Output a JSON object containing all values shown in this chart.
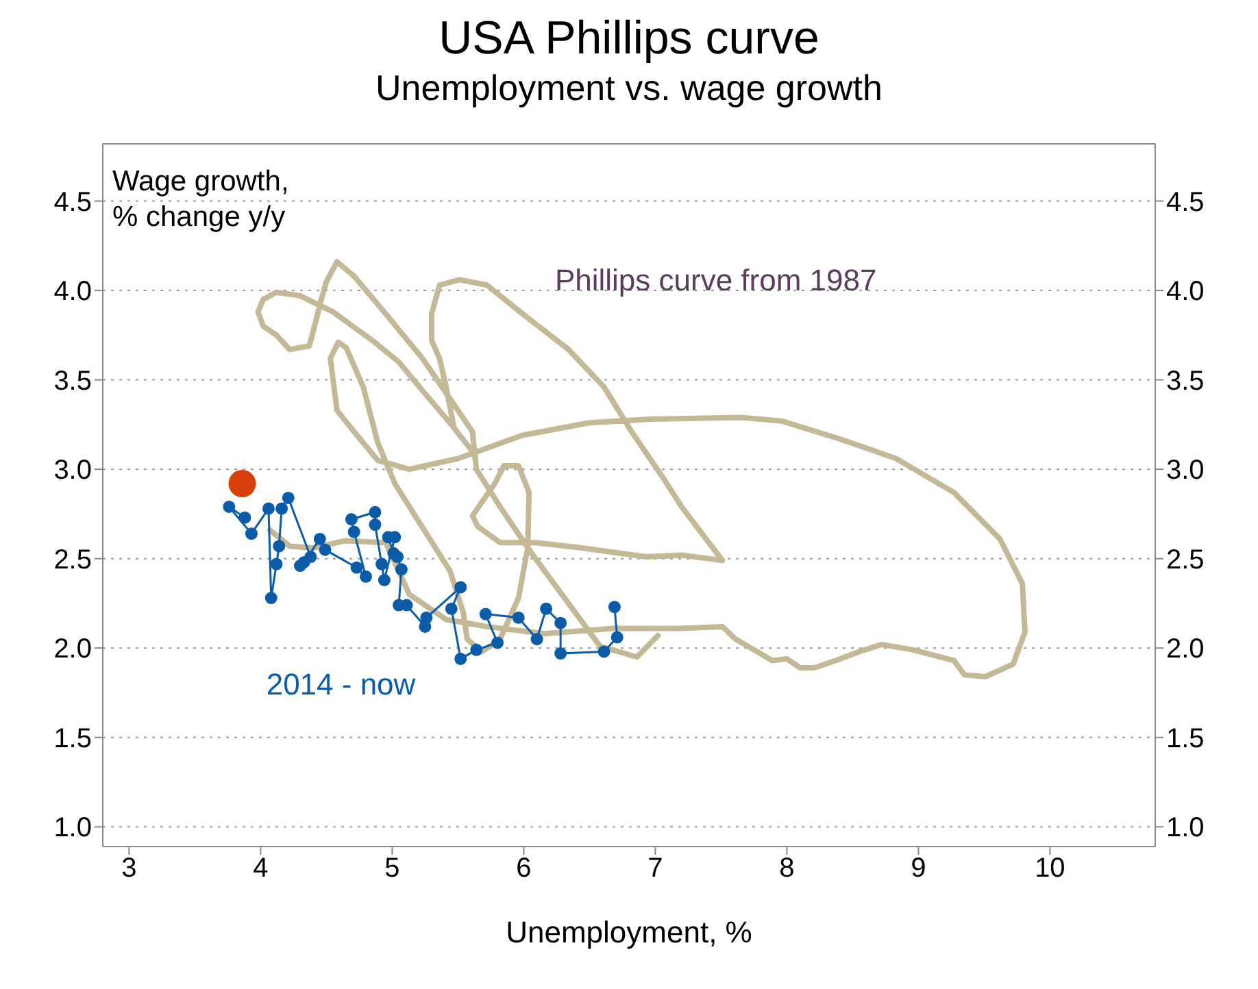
{
  "chart_data": {
    "type": "line",
    "title": "USA Phillips curve",
    "subtitle": "Unemployment vs. wage growth",
    "xlabel": "Unemployment, %",
    "ylabel": "Wage growth,\n% change y/y",
    "xlim": [
      2.8,
      10.8
    ],
    "xticks": [
      3,
      4,
      5,
      6,
      7,
      8,
      9,
      10
    ],
    "ylim": [
      0.89,
      4.82
    ],
    "yticks": [
      {
        "value": 1,
        "label": "1.0"
      },
      1.5,
      {
        "value": 2,
        "label": "2.0"
      },
      2.5,
      {
        "value": 3,
        "label": "3.0"
      },
      3.5,
      {
        "value": 4,
        "label": "4.0"
      },
      4.5
    ],
    "y2lim": [
      0.89,
      4.82
    ],
    "y2ticks": [
      {
        "value": 1,
        "label": "1.0"
      },
      1.5,
      {
        "value": 2,
        "label": "2.0"
      },
      2.5,
      {
        "value": 3,
        "label": "3.0"
      },
      3.5,
      {
        "value": 4,
        "label": "4.0"
      },
      4.5
    ],
    "grid": "y",
    "series": [
      {
        "name": "Phillips curve from 1987",
        "marker": "none",
        "color": "#c4b896",
        "x": [
          7.02,
          6.86,
          6.58,
          6.34,
          6.06,
          5.82,
          5.64,
          5.61,
          5.23,
          4.95,
          4.71,
          4.58,
          4.5,
          4.45,
          4.42,
          4.37,
          4.22,
          4.12,
          4.02,
          3.98,
          4.02,
          4.12,
          4.3,
          4.55,
          4.85,
          5.05,
          5.23,
          5.45,
          5.61,
          5.47,
          5.41,
          5.36,
          5.3,
          5.3,
          5.36,
          5.51,
          5.72,
          5.99,
          6.34,
          6.61,
          6.82,
          7.07,
          7.2,
          7.51,
          7.2,
          6.93,
          6.44,
          6.09,
          5.82,
          5.65,
          5.61,
          5.78,
          5.85,
          5.96,
          6.04,
          6.03,
          5.96,
          5.82,
          5.68,
          5.57,
          5.54,
          5.44,
          5.2,
          5.02,
          4.89,
          4.78,
          4.65,
          4.59,
          4.53,
          4.58,
          4.71,
          4.89,
          5.13,
          5.5,
          5.99,
          6.5,
          6.96,
          7.65,
          7.96,
          8.4,
          8.83,
          9.27,
          9.62,
          9.79,
          9.81,
          9.72,
          9.51,
          9.35,
          9.27,
          8.96,
          8.72,
          8.55,
          8.37,
          8.21,
          8.1,
          8.0,
          7.89,
          7.61,
          7.51,
          7.2,
          6.68,
          6.16,
          5.72,
          5.41,
          5.13,
          5.05,
          4.95,
          4.64,
          4.4,
          4.22,
          4.07
        ],
        "values": [
          2.07,
          1.95,
          2.01,
          2.25,
          2.53,
          2.79,
          3.0,
          3.21,
          3.62,
          3.87,
          4.08,
          4.16,
          4.05,
          3.92,
          3.83,
          3.69,
          3.67,
          3.75,
          3.8,
          3.88,
          3.95,
          3.99,
          3.97,
          3.88,
          3.72,
          3.6,
          3.44,
          3.25,
          3.1,
          3.23,
          3.46,
          3.62,
          3.72,
          3.87,
          4.03,
          4.06,
          4.03,
          3.87,
          3.67,
          3.46,
          3.21,
          2.94,
          2.79,
          2.49,
          2.52,
          2.51,
          2.56,
          2.59,
          2.59,
          2.68,
          2.74,
          2.92,
          3.02,
          3.02,
          2.87,
          2.56,
          2.28,
          2.05,
          1.98,
          2.05,
          2.2,
          2.43,
          2.71,
          2.92,
          3.15,
          3.46,
          3.68,
          3.71,
          3.62,
          3.33,
          3.21,
          3.05,
          3.0,
          3.06,
          3.19,
          3.26,
          3.28,
          3.29,
          3.27,
          3.17,
          3.06,
          2.87,
          2.61,
          2.36,
          2.09,
          1.91,
          1.84,
          1.85,
          1.93,
          1.99,
          2.02,
          1.98,
          1.93,
          1.89,
          1.89,
          1.94,
          1.93,
          2.05,
          2.12,
          2.11,
          2.11,
          2.08,
          2.12,
          2.16,
          2.3,
          2.43,
          2.59,
          2.6,
          2.56,
          2.57,
          2.66
        ]
      },
      {
        "name": "2014 - now",
        "marker": "circle",
        "color": "#0a5ca8",
        "x": [
          6.69,
          6.71,
          6.61,
          6.28,
          6.28,
          6.17,
          6.1,
          5.96,
          5.71,
          5.8,
          5.64,
          5.52,
          5.45,
          5.52,
          5.26,
          5.25,
          5.11,
          5.05,
          5.07,
          5.04,
          5.01,
          4.97,
          5.02,
          4.94,
          4.92,
          4.87,
          4.87,
          4.69,
          4.71,
          4.8,
          4.73,
          4.49,
          4.45,
          4.33,
          4.3,
          4.38,
          4.21,
          4.16,
          4.14,
          4.12,
          4.08,
          4.06,
          3.93,
          3.76,
          3.88
        ],
        "values": [
          2.23,
          2.06,
          1.98,
          1.97,
          2.14,
          2.22,
          2.05,
          2.17,
          2.19,
          2.03,
          1.99,
          1.94,
          2.22,
          2.34,
          2.17,
          2.12,
          2.24,
          2.24,
          2.44,
          2.51,
          2.53,
          2.62,
          2.62,
          2.38,
          2.47,
          2.69,
          2.76,
          2.72,
          2.65,
          2.4,
          2.45,
          2.55,
          2.61,
          2.48,
          2.46,
          2.51,
          2.84,
          2.78,
          2.57,
          2.47,
          2.28,
          2.78,
          2.64,
          2.79,
          2.73
        ]
      },
      {
        "type": "scatter",
        "marker": "circle",
        "color": "#d93f0b",
        "x": [
          3.86
        ],
        "values": [
          2.92
        ]
      }
    ]
  }
}
